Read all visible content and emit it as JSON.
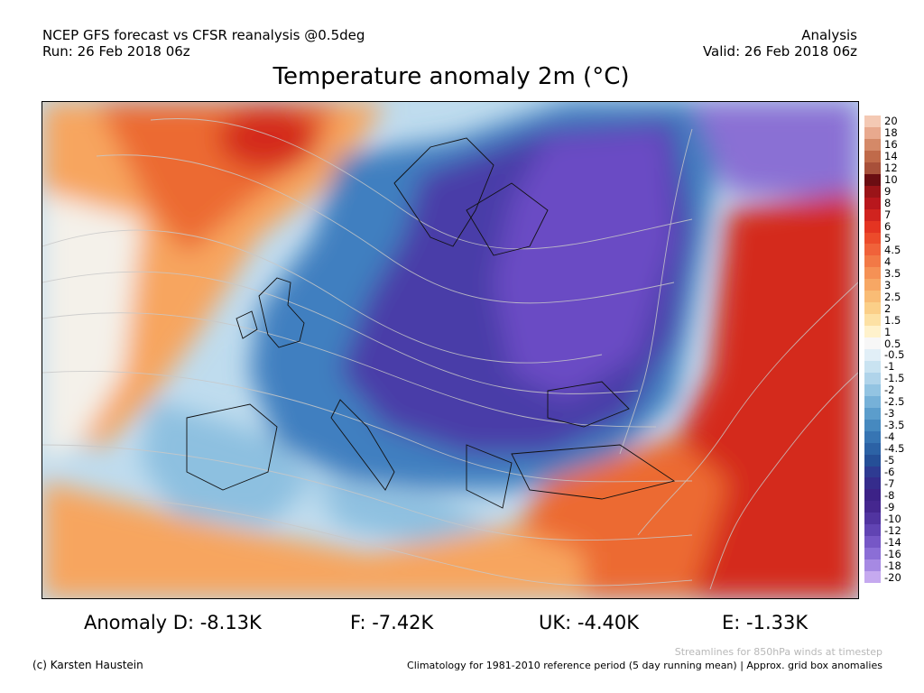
{
  "header": {
    "line1_left": "NCEP GFS forecast vs CFSR reanalysis @0.5deg",
    "line2_left": "Run: 26 Feb 2018 06z",
    "line1_right": "Analysis",
    "line2_right": "Valid: 26 Feb 2018 06z"
  },
  "title": "Temperature anomaly 2m (°C)",
  "colorbar": {
    "labels": [
      "20",
      "18",
      "16",
      "14",
      "12",
      "10",
      "9",
      "8",
      "7",
      "6",
      "5",
      "4.5",
      "4",
      "3.5",
      "3",
      "2.5",
      "2",
      "1.5",
      "1",
      "0.5",
      "-0.5",
      "-1",
      "-1.5",
      "-2",
      "-2.5",
      "-3",
      "-3.5",
      "-4",
      "-4.5",
      "-5",
      "-6",
      "-7",
      "-8",
      "-9",
      "-10",
      "-12",
      "-14",
      "-16",
      "-18",
      "-20"
    ],
    "colors": [
      "#f4c9b4",
      "#e8a98e",
      "#d48968",
      "#c06a4a",
      "#a8503a",
      "#6b0d12",
      "#9a1418",
      "#b8171d",
      "#d0231f",
      "#e43422",
      "#ec4b2b",
      "#f0623a",
      "#f27946",
      "#f59155",
      "#f7a764",
      "#f9bc75",
      "#fbcf88",
      "#fde1a4",
      "#fff2cc",
      "#f7f7f7",
      "#e1eff7",
      "#c9e3f1",
      "#b0d4ea",
      "#93c4e2",
      "#76b1d8",
      "#5b9dcc",
      "#4689bf",
      "#3775b3",
      "#2c62a5",
      "#254f97",
      "#2e3b92",
      "#352c8c",
      "#3c2287",
      "#45278f",
      "#5134a0",
      "#6144b3",
      "#7657c6",
      "#8b6ed6",
      "#a689e3",
      "#c5a9ef"
    ]
  },
  "stats": {
    "d": "Anomaly D: -8.13K",
    "f": "F: -7.42K",
    "uk": "UK: -4.40K",
    "e": "E: -1.33K"
  },
  "footer": {
    "streamlines": "Streamlines for 850hPa winds at timestep",
    "credit": "(c) Karsten Haustein",
    "climatology": "Climatology for 1981-2010 reference period (5 day running mean) | Approx. grid box anomalies"
  },
  "map_colors": {
    "warm_strong": "#d42a1f",
    "warm": "#ec6a30",
    "warm_light": "#f7a55e",
    "neutral": "#f4f1ea",
    "cool": "#8dc0e0",
    "cold": "#3f7fc0",
    "very_cold": "#4a3ea8",
    "extreme_cold": "#6a4bc4",
    "coastline": "#111111",
    "streamline": "#c8c8c8"
  }
}
